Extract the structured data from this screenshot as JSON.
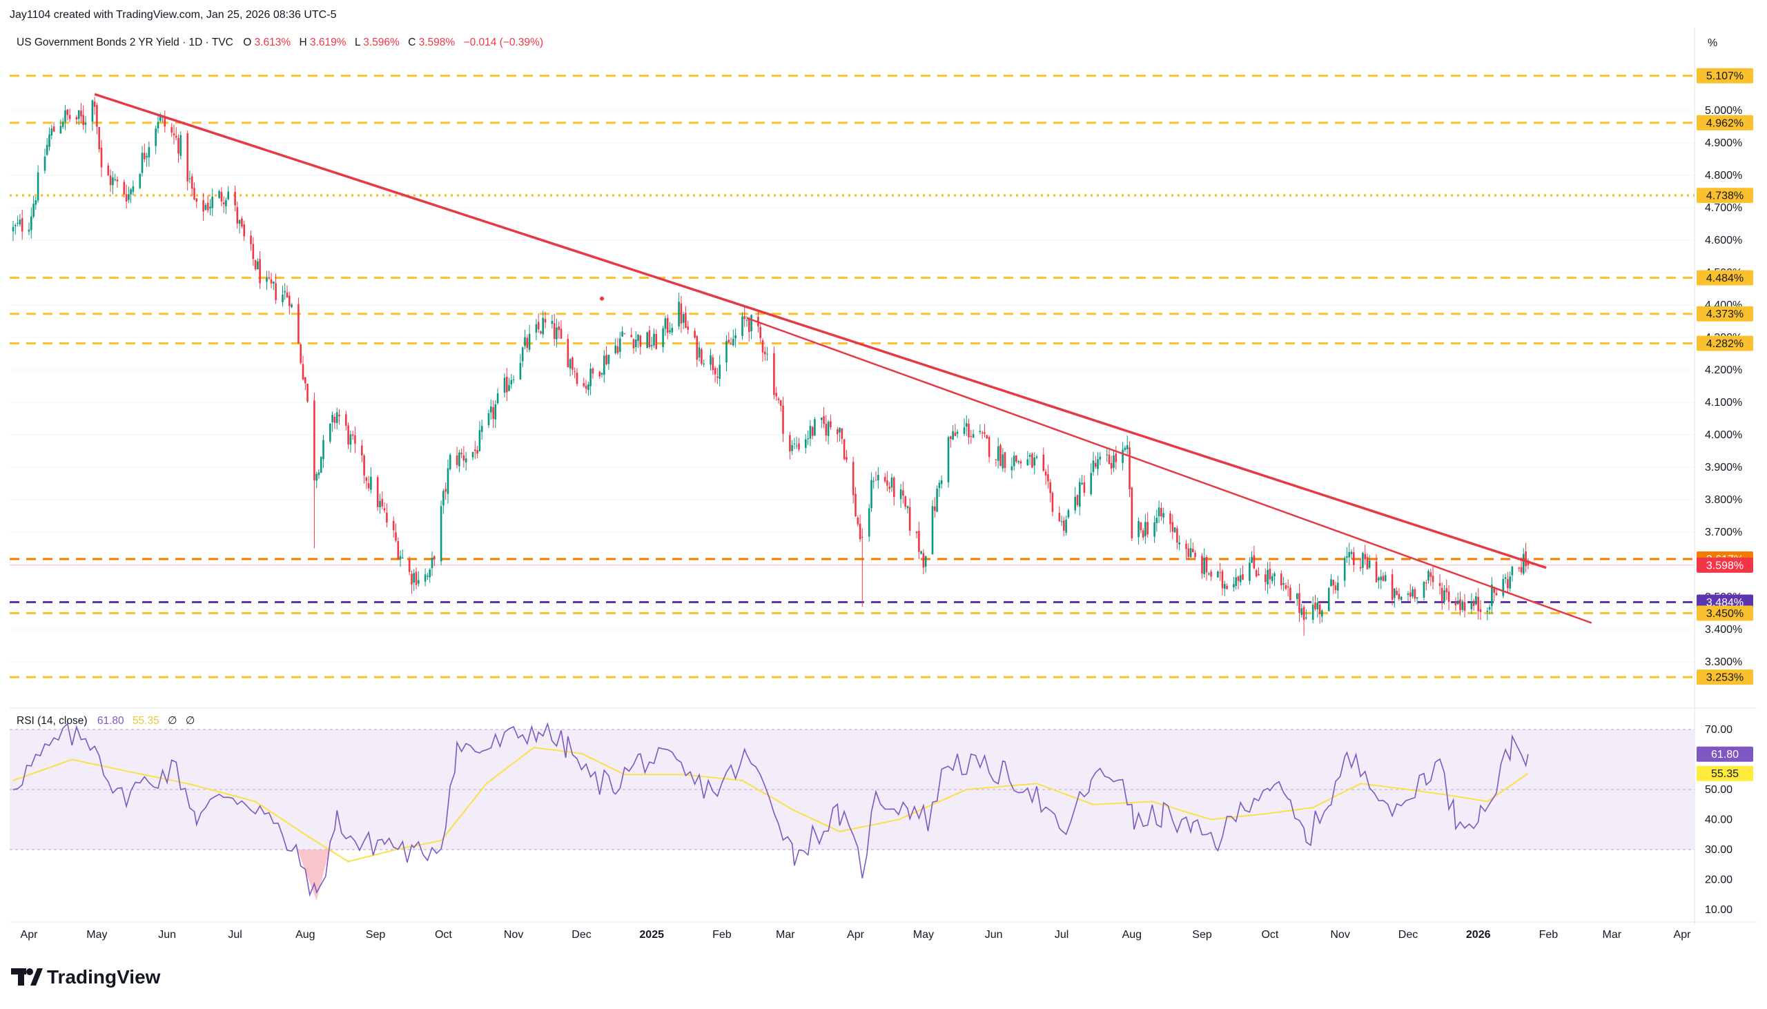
{
  "header": {
    "created_by": "Jay1104 created with TradingView.com, Jan 25, 2026 08:36 UTC-5"
  },
  "legend": {
    "symbol": "US Government Bonds 2 YR Yield · 1D · TVC",
    "o_label": "O",
    "o_value": "3.613%",
    "h_label": "H",
    "h_value": "3.619%",
    "l_label": "L",
    "l_value": "3.596%",
    "c_label": "C",
    "c_value": "3.598%",
    "change": "−0.014 (−0.39%)",
    "value_color": "#f23645"
  },
  "rsi_legend": {
    "label": "RSI (14, close)",
    "rsi_value": "61.80",
    "ma_value": "55.35",
    "icon1": "∅",
    "icon2": "∅"
  },
  "price_axis": {
    "unit": "%",
    "ticks": [
      "5.000%",
      "4.900%",
      "4.800%",
      "4.700%",
      "4.600%",
      "4.500%",
      "4.400%",
      "4.300%",
      "4.200%",
      "4.100%",
      "4.000%",
      "3.900%",
      "3.800%",
      "3.700%",
      "3.600%",
      "3.500%",
      "3.400%",
      "3.300%"
    ]
  },
  "rsi_axis": {
    "ticks": [
      "70.00",
      "50.00",
      "40.00",
      "30.00",
      "20.00",
      "10.00"
    ]
  },
  "time_axis": {
    "labels": [
      "Apr",
      "May",
      "Jun",
      "Jul",
      "Aug",
      "Sep",
      "Oct",
      "Nov",
      "Dec",
      "2025",
      "Feb",
      "Mar",
      "Apr",
      "May",
      "Jun",
      "Jul",
      "Aug",
      "Sep",
      "Oct",
      "Nov",
      "Dec",
      "2026",
      "Feb",
      "Mar",
      "Apr"
    ]
  },
  "level_badges": [
    {
      "label": "5.107%",
      "value": 5.107,
      "bg": "#fbc02d",
      "fg": "#131722"
    },
    {
      "label": "4.962%",
      "value": 4.962,
      "bg": "#fbc02d",
      "fg": "#131722"
    },
    {
      "label": "4.738%",
      "value": 4.738,
      "bg": "#fbc02d",
      "fg": "#131722"
    },
    {
      "label": "4.484%",
      "value": 4.484,
      "bg": "#fbc02d",
      "fg": "#131722"
    },
    {
      "label": "4.373%",
      "value": 4.373,
      "bg": "#fbc02d",
      "fg": "#131722"
    },
    {
      "label": "4.282%",
      "value": 4.282,
      "bg": "#fbc02d",
      "fg": "#131722"
    },
    {
      "label": "3.617%",
      "value": 3.617,
      "bg": "#f57c00",
      "fg": "#ffffff"
    },
    {
      "label": "3.598%",
      "value": 3.598,
      "bg": "#f23645",
      "fg": "#ffffff"
    },
    {
      "label": "3.484%",
      "value": 3.484,
      "bg": "#5e35b1",
      "fg": "#ffffff"
    },
    {
      "label": "3.450%",
      "value": 3.45,
      "bg": "#fbc02d",
      "fg": "#131722"
    },
    {
      "label": "3.253%",
      "value": 3.253,
      "bg": "#fbc02d",
      "fg": "#131722"
    }
  ],
  "rsi_badges": [
    {
      "label": "61.80",
      "value": 61.8,
      "bg": "#7e57c2",
      "fg": "#ffffff"
    },
    {
      "label": "55.35",
      "value": 55.35,
      "bg": "#ffeb3b",
      "fg": "#131722"
    }
  ],
  "branding": {
    "logo_text": "TradingView"
  },
  "colors": {
    "up": "#089981",
    "down": "#f23645",
    "trendline": "#e53945",
    "level_yellow": "#fbc02d",
    "level_purple": "#5e35b1",
    "rsi_line": "#7e57c2",
    "rsi_ma": "#fbe04a",
    "rsi_band": "#ede7f6"
  },
  "chart_data": [
    {
      "type": "candlestick",
      "title": "US Government Bonds 2 YR Yield · 1D · TVC",
      "y_unit": "%",
      "ylim": [
        3.2,
        5.15
      ],
      "x_range": [
        "2024-03-25",
        "2026-04-15"
      ],
      "ohlc_last": {
        "open": 3.613,
        "high": 3.619,
        "low": 3.596,
        "close": 3.598
      },
      "close_path": [
        [
          "2024-03-25",
          4.63
        ],
        [
          "2024-04-01",
          4.66
        ],
        [
          "2024-04-10",
          4.92
        ],
        [
          "2024-04-16",
          4.98
        ],
        [
          "2024-04-25",
          4.97
        ],
        [
          "2024-04-30",
          5.04
        ],
        [
          "2024-05-03",
          4.81
        ],
        [
          "2024-05-15",
          4.74
        ],
        [
          "2024-05-28",
          4.98
        ],
        [
          "2024-06-07",
          4.89
        ],
        [
          "2024-06-14",
          4.69
        ],
        [
          "2024-06-28",
          4.75
        ],
        [
          "2024-07-05",
          4.6
        ],
        [
          "2024-07-15",
          4.45
        ],
        [
          "2024-07-25",
          4.43
        ],
        [
          "2024-08-01",
          4.16
        ],
        [
          "2024-08-05",
          3.88
        ],
        [
          "2024-08-15",
          4.07
        ],
        [
          "2024-08-25",
          3.92
        ],
        [
          "2024-09-05",
          3.75
        ],
        [
          "2024-09-16",
          3.57
        ],
        [
          "2024-09-25",
          3.56
        ],
        [
          "2024-10-04",
          3.92
        ],
        [
          "2024-10-15",
          3.95
        ],
        [
          "2024-10-25",
          4.1
        ],
        [
          "2024-11-06",
          4.27
        ],
        [
          "2024-11-14",
          4.34
        ],
        [
          "2024-11-20",
          4.31
        ],
        [
          "2024-12-02",
          4.15
        ],
        [
          "2024-12-12",
          4.24
        ],
        [
          "2024-12-20",
          4.31
        ],
        [
          "2025-01-02",
          4.28
        ],
        [
          "2025-01-13",
          4.38
        ],
        [
          "2025-01-20",
          4.27
        ],
        [
          "2025-01-30",
          4.21
        ],
        [
          "2025-02-12",
          4.36
        ],
        [
          "2025-02-20",
          4.27
        ],
        [
          "2025-03-03",
          3.95
        ],
        [
          "2025-03-14",
          4.02
        ],
        [
          "2025-03-25",
          4.03
        ],
        [
          "2025-04-04",
          3.65
        ],
        [
          "2025-04-09",
          3.88
        ],
        [
          "2025-04-20",
          3.82
        ],
        [
          "2025-05-01",
          3.62
        ],
        [
          "2025-05-12",
          3.98
        ],
        [
          "2025-05-20",
          4.02
        ],
        [
          "2025-06-05",
          3.93
        ],
        [
          "2025-06-20",
          3.91
        ],
        [
          "2025-07-01",
          3.72
        ],
        [
          "2025-07-15",
          3.9
        ],
        [
          "2025-07-30",
          3.94
        ],
        [
          "2025-08-01",
          3.69
        ],
        [
          "2025-08-15",
          3.75
        ],
        [
          "2025-08-28",
          3.62
        ],
        [
          "2025-09-10",
          3.54
        ],
        [
          "2025-09-22",
          3.6
        ],
        [
          "2025-10-01",
          3.56
        ],
        [
          "2025-10-16",
          3.46
        ],
        [
          "2025-10-24",
          3.47
        ],
        [
          "2025-11-03",
          3.61
        ],
        [
          "2025-11-14",
          3.6
        ],
        [
          "2025-11-26",
          3.49
        ],
        [
          "2025-12-10",
          3.55
        ],
        [
          "2025-12-22",
          3.49
        ],
        [
          "2026-01-02",
          3.47
        ],
        [
          "2026-01-12",
          3.54
        ],
        [
          "2026-01-20",
          3.6
        ],
        [
          "2026-01-23",
          3.598
        ]
      ]
    },
    {
      "type": "line",
      "title": "RSI (14, close)",
      "ylim": [
        5,
        75
      ],
      "bands": {
        "upper": 70,
        "middle": 50,
        "lower": 30
      },
      "series": [
        {
          "name": "RSI",
          "last": 61.8,
          "points": [
            [
              "2024-03-25",
              52
            ],
            [
              "2024-04-08",
              62
            ],
            [
              "2024-04-16",
              68
            ],
            [
              "2024-04-30",
              66
            ],
            [
              "2024-05-10",
              47
            ],
            [
              "2024-05-24",
              53
            ],
            [
              "2024-06-05",
              57
            ],
            [
              "2024-06-14",
              41
            ],
            [
              "2024-06-28",
              49
            ],
            [
              "2024-07-12",
              44
            ],
            [
              "2024-07-22",
              34
            ],
            [
              "2024-08-01",
              23
            ],
            [
              "2024-08-06",
              13
            ],
            [
              "2024-08-15",
              40
            ],
            [
              "2024-08-25",
              31
            ],
            [
              "2024-09-05",
              33
            ],
            [
              "2024-09-18",
              28
            ],
            [
              "2024-09-30",
              32
            ],
            [
              "2024-10-07",
              64
            ],
            [
              "2024-10-18",
              63
            ],
            [
              "2024-10-30",
              67
            ],
            [
              "2024-11-12",
              70
            ],
            [
              "2024-11-25",
              64
            ],
            [
              "2024-12-05",
              53
            ],
            [
              "2024-12-16",
              52
            ],
            [
              "2024-12-27",
              60
            ],
            [
              "2025-01-10",
              59
            ],
            [
              "2025-01-20",
              52
            ],
            [
              "2025-01-30",
              50
            ],
            [
              "2025-02-12",
              61
            ],
            [
              "2025-02-24",
              45
            ],
            [
              "2025-03-05",
              28
            ],
            [
              "2025-03-14",
              35
            ],
            [
              "2025-03-25",
              42
            ],
            [
              "2025-04-04",
              24
            ],
            [
              "2025-04-10",
              47
            ],
            [
              "2025-04-25",
              44
            ],
            [
              "2025-05-03",
              40
            ],
            [
              "2025-05-12",
              60
            ],
            [
              "2025-05-22",
              58
            ],
            [
              "2025-06-06",
              55
            ],
            [
              "2025-06-18",
              50
            ],
            [
              "2025-07-01",
              34
            ],
            [
              "2025-07-14",
              53
            ],
            [
              "2025-07-28",
              55
            ],
            [
              "2025-08-02",
              38
            ],
            [
              "2025-08-15",
              42
            ],
            [
              "2025-08-28",
              36
            ],
            [
              "2025-09-08",
              33
            ],
            [
              "2025-09-22",
              47
            ],
            [
              "2025-10-01",
              52
            ],
            [
              "2025-10-10",
              44
            ],
            [
              "2025-10-17",
              33
            ],
            [
              "2025-10-28",
              48
            ],
            [
              "2025-11-04",
              60
            ],
            [
              "2025-11-14",
              55
            ],
            [
              "2025-11-26",
              41
            ],
            [
              "2025-12-09",
              56
            ],
            [
              "2025-12-15",
              58
            ],
            [
              "2025-12-22",
              40
            ],
            [
              "2026-01-02",
              42
            ],
            [
              "2026-01-09",
              51
            ],
            [
              "2026-01-16",
              66
            ],
            [
              "2026-01-23",
              61.8
            ]
          ]
        },
        {
          "name": "RSI-based MA",
          "last": 55.35,
          "points": [
            [
              "2024-03-25",
              53
            ],
            [
              "2024-04-20",
              60
            ],
            [
              "2024-05-15",
              56
            ],
            [
              "2024-06-10",
              52
            ],
            [
              "2024-07-10",
              46
            ],
            [
              "2024-08-01",
              35
            ],
            [
              "2024-08-20",
              26
            ],
            [
              "2024-09-10",
              30
            ],
            [
              "2024-09-30",
              33
            ],
            [
              "2024-10-20",
              52
            ],
            [
              "2024-11-10",
              64
            ],
            [
              "2024-12-01",
              62
            ],
            [
              "2024-12-20",
              55
            ],
            [
              "2025-01-15",
              55
            ],
            [
              "2025-02-10",
              53
            ],
            [
              "2025-03-05",
              43
            ],
            [
              "2025-03-25",
              36
            ],
            [
              "2025-04-20",
              40
            ],
            [
              "2025-05-20",
              50
            ],
            [
              "2025-06-20",
              52
            ],
            [
              "2025-07-15",
              45
            ],
            [
              "2025-08-10",
              46
            ],
            [
              "2025-09-05",
              40
            ],
            [
              "2025-09-30",
              42
            ],
            [
              "2025-10-20",
              44
            ],
            [
              "2025-11-10",
              52
            ],
            [
              "2025-12-01",
              50
            ],
            [
              "2025-12-20",
              48
            ],
            [
              "2026-01-05",
              46
            ],
            [
              "2026-01-23",
              55.35
            ]
          ]
        }
      ]
    }
  ],
  "drawings": {
    "horizontal_levels": [
      {
        "value": 5.107,
        "style": "dashed",
        "color": "#fbc02d"
      },
      {
        "value": 4.962,
        "style": "dashed",
        "color": "#fbc02d"
      },
      {
        "value": 4.738,
        "style": "dotted",
        "color": "#fbc02d"
      },
      {
        "value": 4.484,
        "style": "dashed",
        "color": "#fbc02d"
      },
      {
        "value": 4.373,
        "style": "dashed",
        "color": "#fbc02d"
      },
      {
        "value": 4.282,
        "style": "dashed",
        "color": "#fbc02d"
      },
      {
        "value": 3.617,
        "style": "dashed",
        "color": "#f57c00"
      },
      {
        "value": 3.598,
        "style": "solid-thin",
        "color": "#f8bbbf"
      },
      {
        "value": 3.484,
        "style": "dashed",
        "color": "#5e35b1"
      },
      {
        "value": 3.45,
        "style": "dashed",
        "color": "#fbc02d"
      },
      {
        "value": 3.253,
        "style": "dashed",
        "color": "#fbc02d"
      }
    ],
    "trendlines": [
      {
        "from": [
          "2024-04-30",
          5.05
        ],
        "to": [
          "2026-01-31",
          3.59
        ]
      },
      {
        "from": [
          "2025-02-12",
          4.36
        ],
        "to": [
          "2026-02-20",
          3.42
        ]
      }
    ]
  }
}
